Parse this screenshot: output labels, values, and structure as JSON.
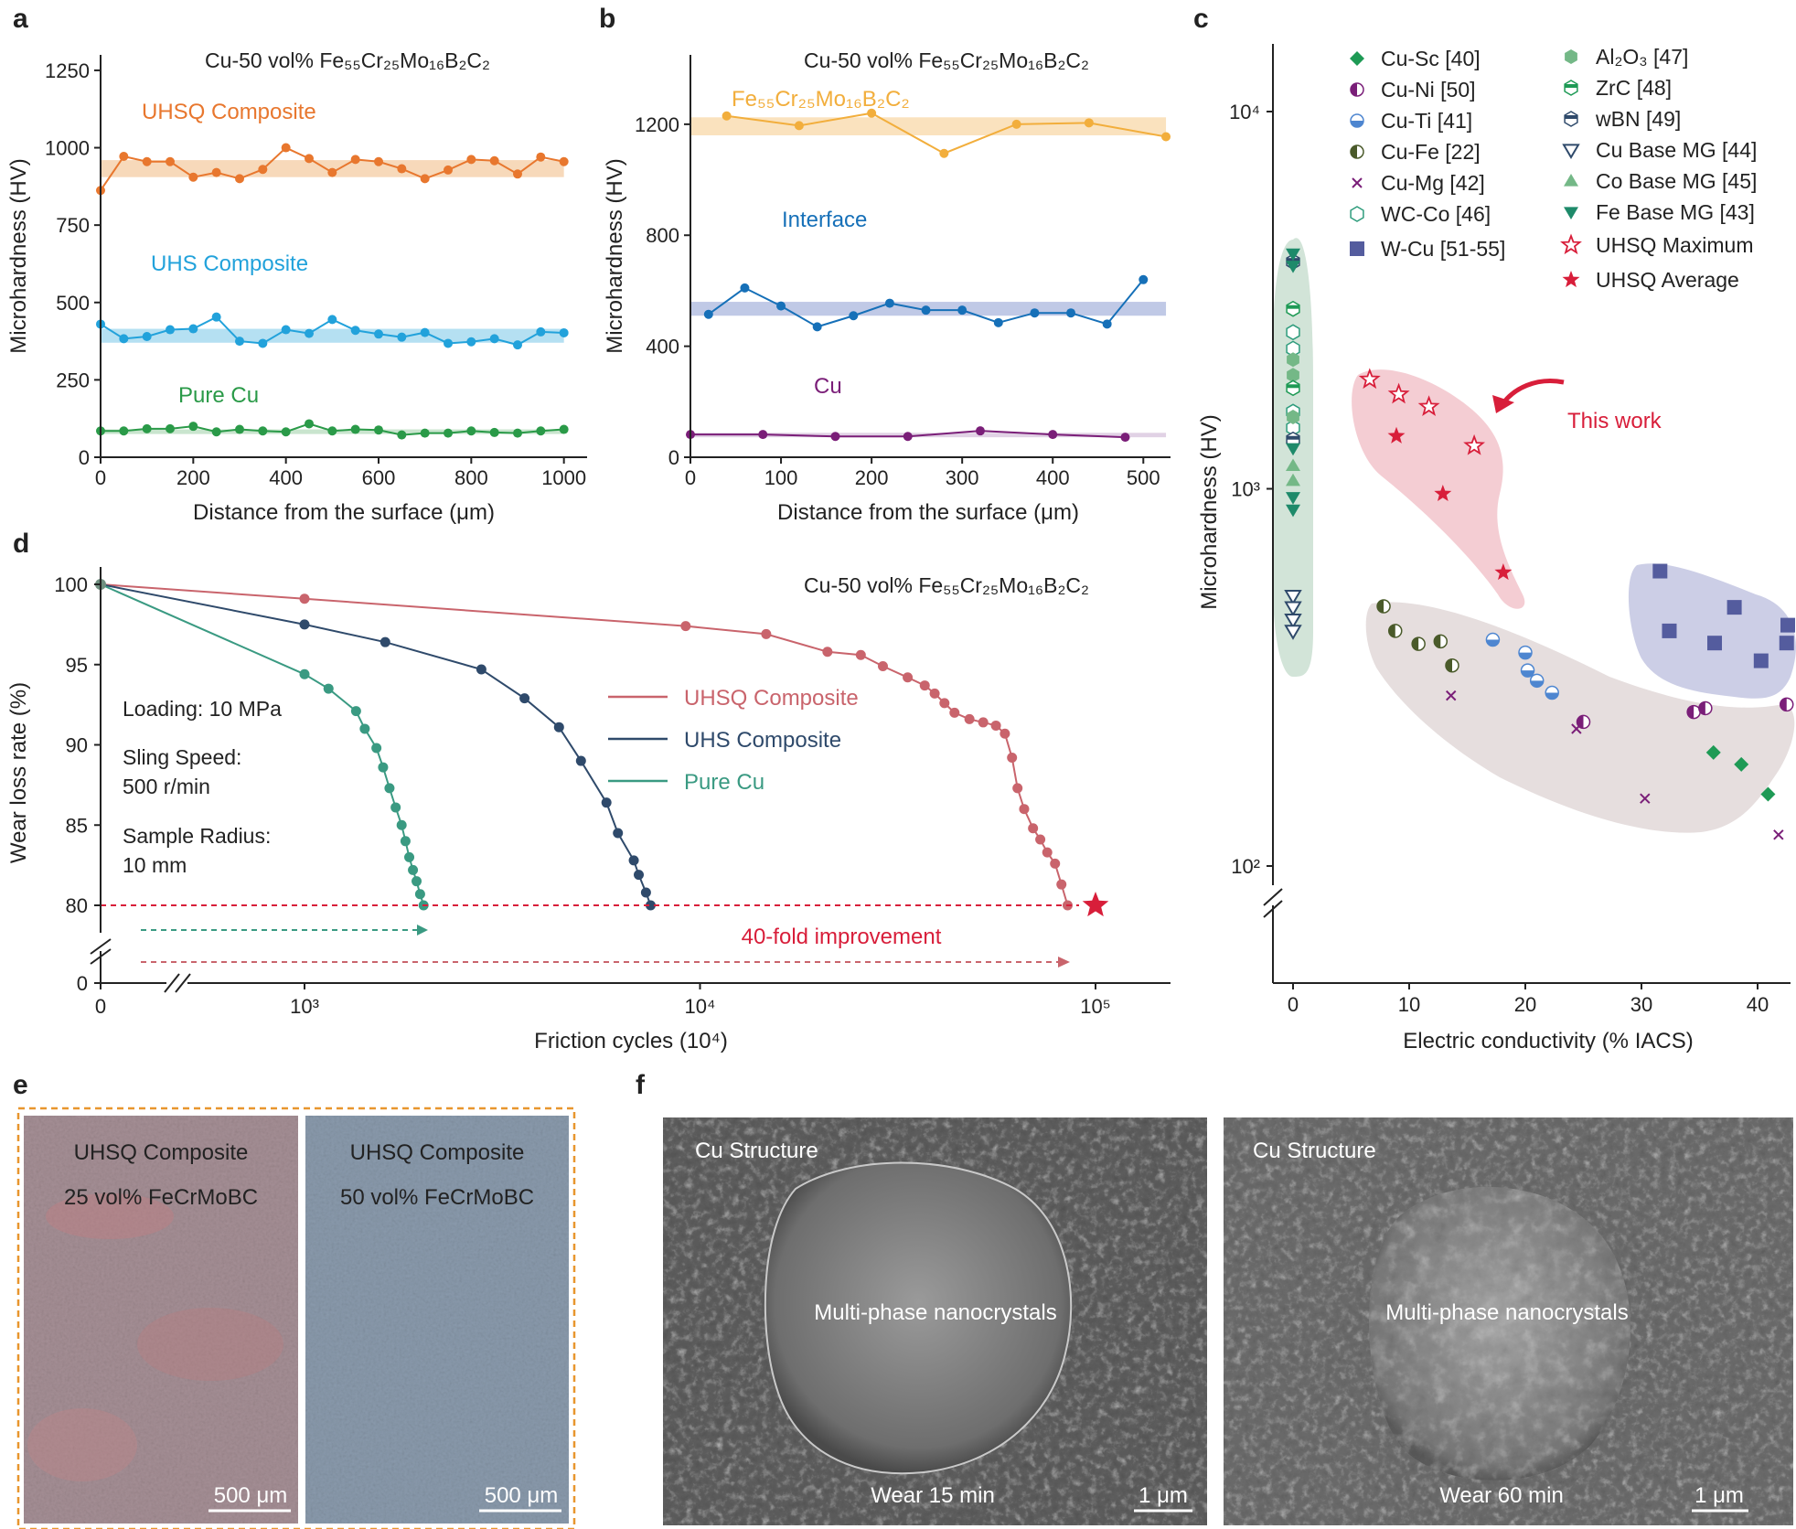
{
  "colors": {
    "orange": "#E8772E",
    "orange_band": "#F6D2AE",
    "blue": "#22A2DB",
    "blue_band": "#A8DBF0",
    "green": "#2A9A48",
    "green_band": "#BFE0C6",
    "gold": "#F2AE3C",
    "gold_band": "#F9DDB3",
    "navy": "#1670B8",
    "navy_band": "#B5C0E2",
    "purple": "#7A1E78",
    "purple_band": "#DCCAE0",
    "uhsq": "#C9646C",
    "uhs": "#2F4A6B",
    "pure": "#3A9A82",
    "red": "#D81E3A",
    "cusc": "#1E9A55",
    "cufe": "#4A5A2A",
    "cuti": "#4E86D0",
    "wcu": "#545C9E",
    "wcco": "#2E9C7C",
    "al2o3": "#74B887",
    "mg": "#1E8A6A"
  },
  "panels": {
    "a": {
      "label": "a",
      "title": "Cu-50 vol% Fe₅₅Cr₂₅Mo₁₆B₂C₂",
      "xlabel": "Distance from the surface (μm)",
      "ylabel": "Microhardness (HV)",
      "xticks": [
        "0",
        "200",
        "400",
        "600",
        "800",
        "1000"
      ],
      "yticks": [
        "0",
        "250",
        "500",
        "750",
        "1000",
        "1250"
      ],
      "series_labels": [
        "UHSQ Composite",
        "UHS Composite",
        "Pure Cu"
      ]
    },
    "b": {
      "label": "b",
      "title": "Cu-50 vol% Fe₅₅Cr₂₅Mo₁₆B₂C₂",
      "xlabel": "Distance from the surface (μm)",
      "ylabel": "Microhardness (HV)",
      "xticks": [
        "0",
        "100",
        "200",
        "300",
        "400",
        "500"
      ],
      "yticks": [
        "0",
        "400",
        "800",
        "1200"
      ],
      "series_labels": [
        "Fe₅₅Cr₂₅Mo₁₆B₂C₂",
        "Interface",
        "Cu"
      ]
    },
    "c": {
      "label": "c",
      "xlabel": "Electric conductivity (% IACS)",
      "ylabel": "Microhardness (HV)",
      "xticks": [
        "0",
        "10",
        "20",
        "30",
        "40"
      ],
      "yticks": [
        "10²",
        "10³",
        "10⁴"
      ],
      "legend_left": [
        "Cu-Sc [40]",
        "Cu-Ni [50]",
        "Cu-Ti [41]",
        "Cu-Fe [22]",
        "Cu-Mg [42]",
        "WC-Co [46]",
        "W-Cu [51-55]"
      ],
      "legend_right": [
        "Al₂O₃ [47]",
        "ZrC [48]",
        "wBN [49]",
        "Cu Base MG [44]",
        "Co Base MG [45]",
        "Fe Base MG [43]",
        "UHSQ Maximum",
        "UHSQ Average"
      ],
      "annotation": "This work"
    },
    "d": {
      "label": "d",
      "title": "Cu-50 vol% Fe₅₅Cr₂₅Mo₁₆B₂C₂",
      "xlabel": "Friction cycles (10⁴)",
      "ylabel": "Wear loss rate (%)",
      "xticks": [
        "0",
        "10³",
        "10⁴",
        "10⁵"
      ],
      "yticks": [
        "0",
        "80",
        "85",
        "90",
        "95",
        "100"
      ],
      "conditions": [
        "Loading: 10 MPa",
        "Sling Speed:",
        "500 r/min",
        "Sample Radius:",
        "10 mm"
      ],
      "legend": [
        "UHSQ Composite",
        "UHS Composite",
        "Pure Cu"
      ],
      "improvement": "40-fold improvement"
    },
    "e": {
      "label": "e",
      "left_title": "UHSQ Composite",
      "left_sub": "25 vol% FeCrMoBC",
      "right_title": "UHSQ Composite",
      "right_sub": "50 vol% FeCrMoBC",
      "scale": "500 μm"
    },
    "f": {
      "label": "f",
      "left_tag": "Cu Structure",
      "left_center": "Multi-phase nanocrystals",
      "left_bottom": "Wear 15 min",
      "right_tag": "Cu Structure",
      "right_center": "Multi-phase nanocrystals",
      "right_bottom": "Wear 60 min",
      "scale": "1 μm"
    }
  },
  "chart_data": [
    {
      "id": "a",
      "type": "line",
      "title": "Cu-50 vol% Fe₅₅Cr₂₅Mo₁₆B₂C₂",
      "xlabel": "Distance from the surface (μm)",
      "ylabel": "Microhardness (HV)",
      "xlim": [
        0,
        1050
      ],
      "ylim": [
        0,
        1300
      ],
      "x": [
        0,
        50,
        100,
        150,
        200,
        250,
        300,
        350,
        400,
        450,
        500,
        550,
        600,
        650,
        700,
        750,
        800,
        850,
        900,
        950,
        1000
      ],
      "series": [
        {
          "name": "UHSQ Composite",
          "color": "orange",
          "band": [
            905,
            960
          ],
          "values": [
            862,
            972,
            955,
            955,
            905,
            920,
            900,
            930,
            1000,
            965,
            920,
            962,
            955,
            932,
            900,
            928,
            962,
            958,
            915,
            970,
            955
          ]
        },
        {
          "name": "UHS Composite",
          "color": "blue",
          "band": [
            370,
            415
          ],
          "values": [
            430,
            383,
            390,
            412,
            415,
            453,
            375,
            368,
            412,
            400,
            445,
            410,
            398,
            388,
            403,
            368,
            373,
            383,
            363,
            405,
            402
          ]
        },
        {
          "name": "Pure Cu",
          "color": "green",
          "band": [
            75,
            90
          ],
          "values": [
            85,
            85,
            92,
            92,
            100,
            82,
            90,
            85,
            82,
            108,
            85,
            90,
            88,
            72,
            78,
            78,
            85,
            80,
            78,
            85,
            90
          ]
        }
      ]
    },
    {
      "id": "b",
      "type": "line",
      "title": "Cu-50 vol% Fe₅₅Cr₂₅Mo₁₆B₂C₂",
      "xlabel": "Distance from the surface (μm)",
      "ylabel": "Microhardness (HV)",
      "xlim": [
        0,
        530
      ],
      "ylim": [
        0,
        1450
      ],
      "series": [
        {
          "name": "Fe₅₅Cr₂₅Mo₁₆B₂C₂",
          "color": "gold",
          "band": [
            1160,
            1225
          ],
          "x": [
            40,
            120,
            200,
            280,
            360,
            440,
            525
          ],
          "values": [
            1230,
            1195,
            1240,
            1095,
            1200,
            1205,
            1155
          ]
        },
        {
          "name": "Interface",
          "color": "navy",
          "band": [
            510,
            560
          ],
          "x": [
            20,
            60,
            100,
            140,
            180,
            220,
            260,
            300,
            340,
            380,
            420,
            460,
            500
          ],
          "values": [
            515,
            610,
            545,
            470,
            510,
            555,
            530,
            530,
            485,
            520,
            520,
            480,
            640
          ]
        },
        {
          "name": "Cu",
          "color": "purple",
          "band": [
            72,
            88
          ],
          "x": [
            0,
            80,
            160,
            240,
            320,
            400,
            480
          ],
          "values": [
            82,
            82,
            75,
            75,
            95,
            82,
            72
          ]
        }
      ]
    },
    {
      "id": "c",
      "type": "scatter",
      "yscale": "log",
      "xlabel": "Electric conductivity (% IACS)",
      "ylabel": "Microhardness (HV)",
      "xlim": [
        -2,
        41
      ],
      "ylim": [
        50,
        14000
      ],
      "series": [
        {
          "name": "Cu-Sc [40]",
          "marker": "diamond",
          "color": "cusc",
          "x": [
            36.2,
            38.6,
            40.9
          ],
          "y": [
            200,
            186,
            155
          ]
        },
        {
          "name": "Cu-Ni [50]",
          "marker": "halfcircle",
          "color": "purple",
          "x": [
            25,
            34.5,
            35.5,
            42.5
          ],
          "y": [
            241,
            256,
            262,
            268
          ]
        },
        {
          "name": "Cu-Ti [41]",
          "marker": "circle-split",
          "color": "cuti",
          "x": [
            17.2,
            20,
            20.2,
            21,
            22.3
          ],
          "y": [
            398,
            368,
            330,
            310,
            288
          ]
        },
        {
          "name": "Cu-Fe [22]",
          "marker": "halfcircle",
          "color": "cufe",
          "x": [
            7.8,
            8.8,
            10.8,
            12.7,
            13.7
          ],
          "y": [
            488,
            420,
            388,
            394,
            340
          ]
        },
        {
          "name": "Cu-Mg [42]",
          "marker": "x",
          "color": "purple",
          "x": [
            13.6,
            24.4,
            30.3,
            41.8
          ],
          "y": [
            283,
            231,
            151,
            121
          ]
        },
        {
          "name": "WC-Co [46]",
          "marker": "hexagon-open",
          "color": "wcco",
          "x": [
            0,
            0,
            0,
            0
          ],
          "y": [
            2600,
            2350,
            1600,
            1450
          ]
        },
        {
          "name": "W-Cu [51-55]",
          "marker": "square",
          "color": "wcu",
          "x": [
            31.6,
            32.4,
            36.3,
            38,
            42.6,
            42.5,
            40.3
          ],
          "y": [
            605,
            420,
            390,
            485,
            435,
            390,
            350
          ]
        },
        {
          "name": "Al₂O₃ [47]",
          "marker": "hexagon",
          "color": "al2o3",
          "x": [
            0,
            0,
            0
          ],
          "y": [
            2200,
            2000,
            1550
          ]
        },
        {
          "name": "ZrC [48]",
          "marker": "hexagon-half",
          "color": "cusc",
          "x": [
            0,
            0
          ],
          "y": [
            3000,
            1850
          ]
        },
        {
          "name": "wBN [49]",
          "marker": "hexagon-half",
          "color": "uhs",
          "x": [
            0,
            0
          ],
          "y": [
            4000,
            1350
          ]
        },
        {
          "name": "Cu Base MG [44]",
          "marker": "triangle-down-open",
          "color": "uhs",
          "x": [
            0,
            0,
            0,
            0
          ],
          "y": [
            520,
            485,
            450,
            420
          ]
        },
        {
          "name": "Co Base MG [45]",
          "marker": "triangle",
          "color": "al2o3",
          "x": [
            0,
            0
          ],
          "y": [
            1150,
            1050
          ]
        },
        {
          "name": "Fe Base MG [43]",
          "marker": "triangle-down",
          "color": "mg",
          "x": [
            0,
            0,
            0,
            0,
            0
          ],
          "y": [
            4200,
            3900,
            1280,
            950,
            880
          ]
        },
        {
          "name": "UHSQ Maximum",
          "marker": "star-open",
          "color": "red",
          "x": [
            6.6,
            9.1,
            11.7,
            15.6
          ],
          "y": [
            1950,
            1780,
            1650,
            1300
          ]
        },
        {
          "name": "UHSQ Average",
          "marker": "star",
          "color": "red",
          "x": [
            8.9,
            12.9,
            18.1
          ],
          "y": [
            1380,
            970,
            600
          ]
        }
      ],
      "annotation": "This work"
    },
    {
      "id": "d",
      "type": "line",
      "xscale": "log",
      "title": "Cu-50 vol% Fe₅₅Cr₂₅Mo₁₆B₂C₂",
      "xlabel": "Friction cycles (10⁴)",
      "ylabel": "Wear loss rate (%)",
      "ylim": [
        78,
        100.5
      ],
      "series": [
        {
          "name": "UHSQ Composite",
          "color": "uhsq",
          "x": [
            1000,
            9200,
            14700,
            21000,
            25500,
            29000,
            33500,
            37000,
            39200,
            41500,
            44000,
            48000,
            52000,
            56000,
            59000,
            61500,
            63500,
            66000,
            69500,
            72500,
            75500,
            79000,
            82000,
            85000
          ],
          "y": [
            99.1,
            97.4,
            96.9,
            95.8,
            95.6,
            94.9,
            94.2,
            93.7,
            93.2,
            92.6,
            92.0,
            91.6,
            91.4,
            91.2,
            90.7,
            89.2,
            87.3,
            86.0,
            84.8,
            84.1,
            83.3,
            82.6,
            81.3,
            80.0
          ]
        },
        {
          "name": "UHS Composite",
          "color": "uhs",
          "x": [
            1000,
            1600,
            2800,
            3600,
            4400,
            5000,
            5800,
            6200,
            6800,
            7000,
            7300,
            7500
          ],
          "y": [
            97.5,
            96.4,
            94.7,
            92.9,
            91.1,
            89.0,
            86.4,
            84.5,
            82.8,
            81.9,
            80.8,
            80.0
          ]
        },
        {
          "name": "Pure Cu",
          "color": "pure",
          "x": [
            1000,
            1150,
            1350,
            1420,
            1520,
            1580,
            1640,
            1700,
            1760,
            1800,
            1840,
            1880,
            1920,
            1960,
            2000
          ],
          "y": [
            94.4,
            93.5,
            92.1,
            91.0,
            89.8,
            88.6,
            87.3,
            86.1,
            85.0,
            84.0,
            83.0,
            82.2,
            81.5,
            80.7,
            80.0
          ]
        }
      ],
      "start_point": [
        0,
        100
      ],
      "target": {
        "x": 100000,
        "y": 80
      },
      "improvement": "40-fold improvement"
    }
  ]
}
